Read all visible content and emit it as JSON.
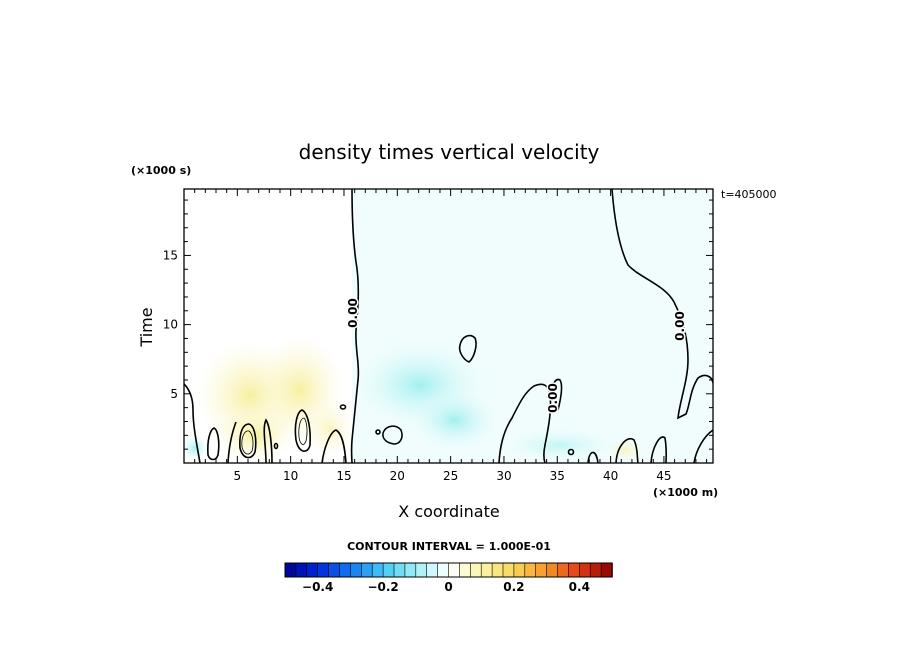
{
  "chart_data": {
    "type": "heatmap",
    "title": "density times vertical velocity",
    "xlabel": "X coordinate",
    "ylabel": "Time",
    "x_unit": "(×1000 m)",
    "y_unit": "(×1000 s)",
    "time_stamp": "t=405000",
    "xlim": [
      0,
      49.6
    ],
    "ylim": [
      0,
      19.8
    ],
    "x_ticks": [
      5,
      10,
      15,
      20,
      25,
      30,
      35,
      40,
      45
    ],
    "y_ticks": [
      5,
      10,
      15
    ],
    "grid": false,
    "contour_interval_text": "CONTOUR INTERVAL = 1.000E-01",
    "contour_label": "0.00",
    "colorbar": {
      "range": [
        -0.5,
        0.5
      ],
      "ticks": [
        -0.4,
        -0.2,
        0,
        0.2,
        0.4
      ],
      "tick_labels": [
        "−0.4",
        "−0.2",
        "0",
        "0.2",
        "0.4"
      ],
      "low_color": "#00008c",
      "mid_color": "#ffffff",
      "high_color": "#8c0000"
    },
    "regions": [
      {
        "name": "positive-west",
        "x": [
          1.5,
          15.5
        ],
        "y": [
          0,
          8.5
        ],
        "value": 0.08
      },
      {
        "name": "negative-east",
        "x": [
          16,
          49.6
        ],
        "y": [
          0,
          19.8
        ],
        "value": -0.03
      },
      {
        "name": "negative-core",
        "x": [
          21,
          29
        ],
        "y": [
          1,
          5
        ],
        "value": -0.12
      }
    ]
  }
}
